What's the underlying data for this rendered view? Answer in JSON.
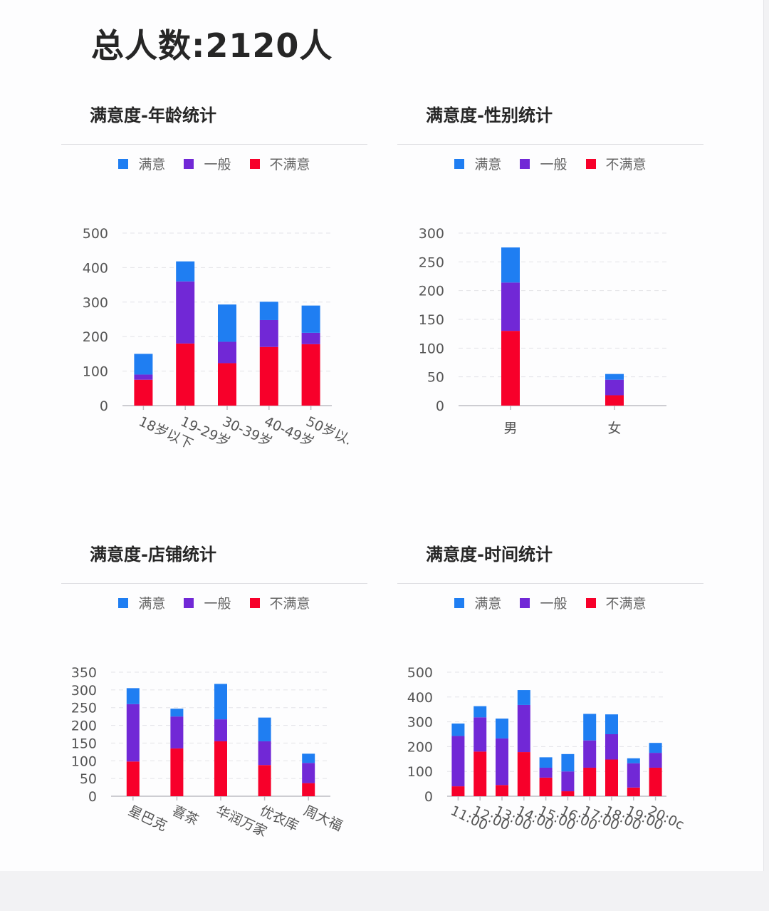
{
  "total_label": "总人数:2120人",
  "colors": {
    "satisfied": "#1f7ef2",
    "neutral": "#7128d6",
    "unsatisfied": "#f7002a"
  },
  "legend": [
    "满意",
    "一般",
    "不满意"
  ],
  "panels": [
    {
      "title": "满意度-年龄统计"
    },
    {
      "title": "满意度-性别统计"
    },
    {
      "title": "满意度-店铺统计"
    },
    {
      "title": "满意度-时间统计"
    }
  ],
  "chart_data": [
    {
      "type": "bar",
      "stacked": true,
      "title": "满意度-年龄统计",
      "categories": [
        "18岁以下",
        "19-29岁",
        "30-39岁",
        "40-49岁",
        "50岁以上"
      ],
      "category_labels_visible": [
        "18岁以下",
        "19-29岁",
        "30-39岁",
        "40-49岁",
        "50岁以."
      ],
      "series": [
        {
          "name": "不满意",
          "values": [
            75,
            180,
            123,
            170,
            178
          ]
        },
        {
          "name": "一般",
          "values": [
            15,
            180,
            62,
            78,
            33
          ]
        },
        {
          "name": "满意",
          "values": [
            60,
            58,
            108,
            53,
            79
          ]
        }
      ],
      "ylim": [
        0,
        500
      ],
      "yticks": [
        0,
        100,
        200,
        300,
        400,
        500
      ],
      "grid": true,
      "legend_position": "top"
    },
    {
      "type": "bar",
      "stacked": true,
      "title": "满意度-性别统计",
      "categories": [
        "男",
        "女"
      ],
      "category_labels_visible": [
        "男",
        "女"
      ],
      "series": [
        {
          "name": "不满意",
          "values": [
            130,
            18
          ]
        },
        {
          "name": "一般",
          "values": [
            84,
            27
          ]
        },
        {
          "name": "满意",
          "values": [
            61,
            10
          ]
        }
      ],
      "ylim": [
        0,
        300
      ],
      "yticks": [
        0,
        50,
        100,
        150,
        200,
        250,
        300
      ],
      "grid": true,
      "legend_position": "top"
    },
    {
      "type": "bar",
      "stacked": true,
      "title": "满意度-店铺统计",
      "categories": [
        "星巴克",
        "喜茶",
        "华润万家",
        "优衣库",
        "周大福"
      ],
      "category_labels_visible": [
        "星巴克",
        "喜茶",
        "华润万家",
        "优衣库",
        "周大福"
      ],
      "series": [
        {
          "name": "不满意",
          "values": [
            98,
            135,
            155,
            88,
            37
          ]
        },
        {
          "name": "一般",
          "values": [
            162,
            90,
            62,
            67,
            57
          ]
        },
        {
          "name": "满意",
          "values": [
            45,
            22,
            100,
            67,
            26
          ]
        }
      ],
      "ylim": [
        0,
        350
      ],
      "yticks": [
        0,
        50,
        100,
        150,
        200,
        250,
        300,
        350
      ],
      "grid": true,
      "legend_position": "top"
    },
    {
      "type": "bar",
      "stacked": true,
      "title": "满意度-时间统计",
      "categories": [
        "11:00",
        "12:00",
        "13:00",
        "14:00",
        "15:00",
        "16:00",
        "17:00",
        "18:00",
        "19:00",
        "20:00"
      ],
      "category_labels_visible": [
        "11:00",
        "12:00",
        "13:00",
        "14:00",
        "15:00",
        "16:00",
        "17:00",
        "18:00",
        "19:00",
        "20:0c"
      ],
      "series": [
        {
          "name": "不满意",
          "values": [
            40,
            180,
            45,
            178,
            75,
            20,
            115,
            148,
            35,
            115
          ]
        },
        {
          "name": "一般",
          "values": [
            203,
            138,
            188,
            190,
            40,
            80,
            110,
            102,
            98,
            60
          ]
        },
        {
          "name": "满意",
          "values": [
            50,
            45,
            80,
            60,
            42,
            70,
            107,
            80,
            20,
            40
          ]
        }
      ],
      "ylim": [
        0,
        500
      ],
      "yticks": [
        0,
        100,
        200,
        300,
        400,
        500
      ],
      "grid": true,
      "legend_position": "top"
    }
  ]
}
